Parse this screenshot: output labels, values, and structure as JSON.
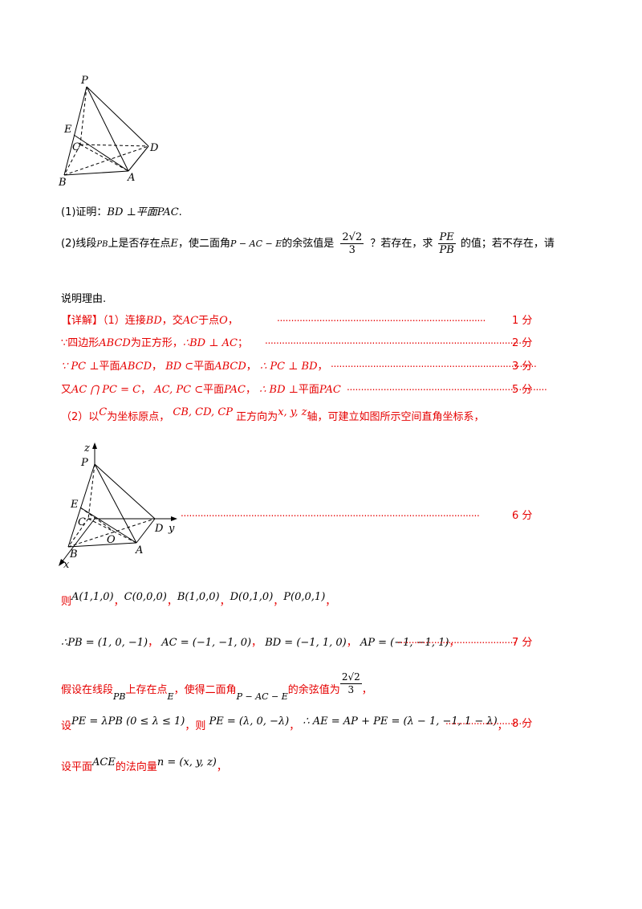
{
  "figure1": {
    "labels": {
      "P": "P",
      "E": "E",
      "C": "C",
      "D": "D",
      "B": "B",
      "A": "A"
    }
  },
  "problem": {
    "p1_prefix": "(1)证明：",
    "p1_math": "BD ⊥平面PAC",
    "p1_end": ".",
    "p2_prefix": "(2)线段",
    "p2_pb": "PB",
    "p2_mid1": "上是否存在点",
    "p2_e": "E",
    "p2_mid2": "，使二面角",
    "p2_angle": "P − AC − E",
    "p2_mid3": "的余弦值是",
    "p2_frac_num": "2√2",
    "p2_frac_den": "3",
    "p2_mid4": "？若存在，求",
    "p2_frac2_num": "PE",
    "p2_frac2_den": "PB",
    "p2_mid5": "的值；若不存在，请",
    "p2_line2": "说明理由."
  },
  "solution": {
    "tag": "【详解】",
    "l1_a": "（1）连接",
    "l1_bd": "BD",
    "l1_b": "，交",
    "l1_ac": "AC",
    "l1_c": "于点",
    "l1_o": "O",
    "l1_d": "，",
    "l1_dots": "..........................................................................",
    "l1_score": "1 分",
    "l2_a": "∵四边形",
    "l2_abcd": "ABCD",
    "l2_b": "为正方形，",
    "l2_c": "∴BD ⊥ AC",
    "l2_d": "；",
    "l2_dots": ".............................................................................................",
    "l2_score": "2 分",
    "l3_a": "∵ PC ⊥",
    "l3_b": "平面",
    "l3_c": "ABCD",
    "l3_d": "，",
    "l3_e": "BD ⊂",
    "l3_f": "平面",
    "l3_g": "ABCD",
    "l3_h": "，",
    "l3_i": "∴ PC ⊥ BD",
    "l3_j": "，",
    "l3_dots": ".........................................................................",
    "l3_score": "3 分",
    "l4_a": "又",
    "l4_b": "AC ⋂ PC = C",
    "l4_c": "，",
    "l4_d": "AC, PC ⊂",
    "l4_e": "平面",
    "l4_f": "PAC",
    "l4_g": "，",
    "l4_h": "∴ BD ⊥",
    "l4_i": "平面",
    "l4_j": "PAC",
    "l4_dots": ".......................................................................",
    "l4_score": "5 分",
    "l5_a": "（2）以",
    "l5_c": "C",
    "l5_b": "为坐标原点，",
    "l5_vec": "CB, CD, CP",
    "l5_d": "正方向为",
    "l5_xyz": "x, y, z",
    "l5_e": "轴，可建立如图所示空间直角坐标系，",
    "fig2_dots": "..........................................................................................................",
    "fig2_score": "6 分",
    "l6_a": "则",
    "l6_pts": [
      "A(1,1,0)",
      "C(0,0,0)",
      "B(1,0,0)",
      "D(0,1,0)",
      "P(0,0,1)"
    ],
    "l6_sep": "，",
    "l7_a": "∴",
    "l7_v1": "PB = (1, 0, −1)",
    "l7_v2": "AC = (−1, −1, 0)",
    "l7_v3": "BD = (−1, 1, 0)",
    "l7_v4": "AP = (−1, −1, 1)",
    "l7_dots": "..........................................",
    "l7_score": "7 分",
    "l8_a": "假设在线段",
    "l8_pb": "PB",
    "l8_b": "上存在点",
    "l8_e": "E",
    "l8_c": "，使得二面角",
    "l8_angle": "P − AC − E",
    "l8_d": "的余弦值为",
    "l8_frac_num": "2√2",
    "l8_frac_den": "3",
    "l8_e2": "，",
    "l9_a": "设",
    "l9_m1": "PE = λPB (0 ≤ λ ≤ 1)",
    "l9_b": "，则",
    "l9_m2": "PE = (λ, 0, −λ)",
    "l9_c": "，",
    "l9_m3": "∴ AE = AP + PE = (λ − 1, −1, 1 − λ)",
    "l9_d": "，",
    "l9_dots": "............................",
    "l9_score": "8 分",
    "l10_a": "设平面",
    "l10_ace": "ACE",
    "l10_b": "的法向量",
    "l10_n": "n = (x, y, z)",
    "l10_c": "，"
  },
  "figure2": {
    "labels": {
      "z": "z",
      "P": "P",
      "E": "E",
      "C": "C",
      "D": "D",
      "y": "y",
      "O": "O",
      "B": "B",
      "A": "A",
      "x": "x"
    }
  }
}
